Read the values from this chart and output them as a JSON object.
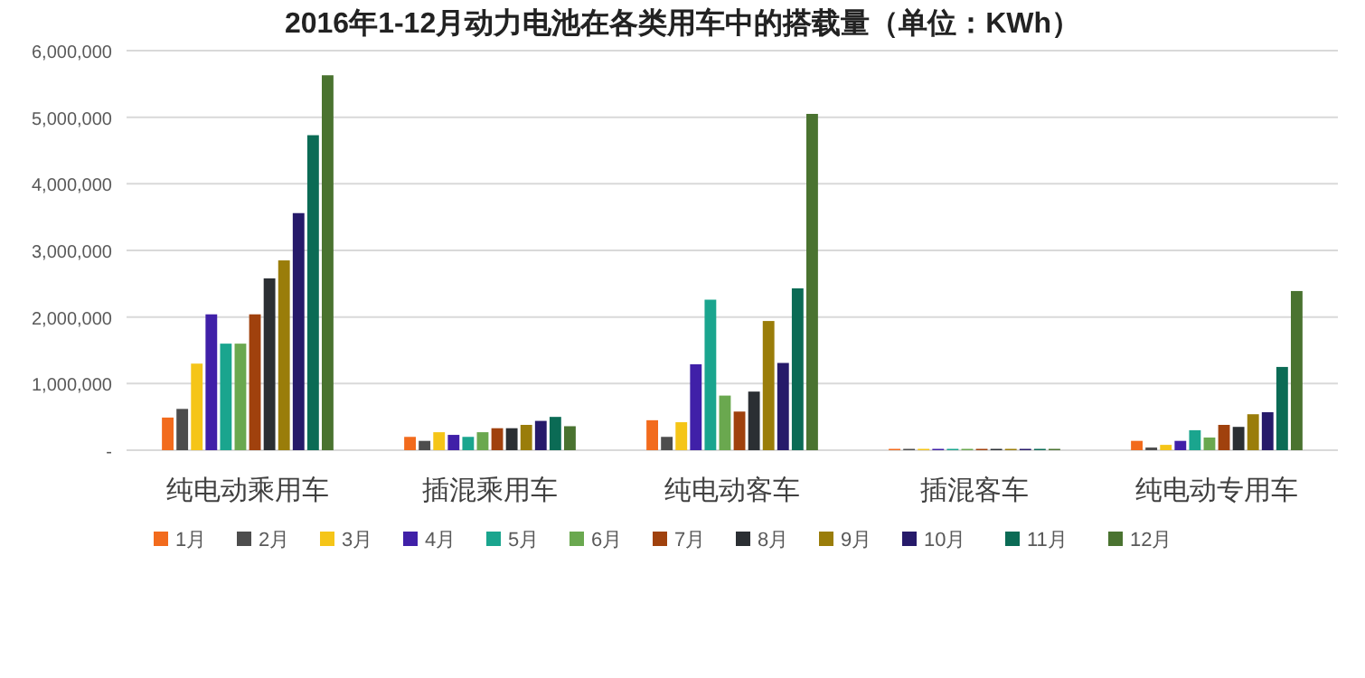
{
  "chart_data": {
    "type": "bar",
    "title": "2016年1-12月动力电池在各类用车中的搭载量（单位：KWh）",
    "categories": [
      "纯电动乘用车",
      "插混乘用车",
      "纯电动客车",
      "插混客车",
      "纯电动专用车"
    ],
    "series": [
      {
        "name": "1月",
        "color": "#f26b1d",
        "values": [
          490000,
          200000,
          450000,
          20000,
          140000
        ]
      },
      {
        "name": "2月",
        "color": "#4d4d4d",
        "values": [
          620000,
          140000,
          200000,
          20000,
          40000
        ]
      },
      {
        "name": "3月",
        "color": "#f5c518",
        "values": [
          1300000,
          270000,
          420000,
          20000,
          80000
        ]
      },
      {
        "name": "4月",
        "color": "#4020a8",
        "values": [
          2040000,
          230000,
          1290000,
          20000,
          140000
        ]
      },
      {
        "name": "5月",
        "color": "#1aa58e",
        "values": [
          1600000,
          200000,
          2260000,
          20000,
          300000
        ]
      },
      {
        "name": "6月",
        "color": "#6aa84f",
        "values": [
          1600000,
          270000,
          820000,
          20000,
          190000
        ]
      },
      {
        "name": "7月",
        "color": "#a0410d",
        "values": [
          2040000,
          330000,
          580000,
          20000,
          380000
        ]
      },
      {
        "name": "8月",
        "color": "#2b2f33",
        "values": [
          2580000,
          330000,
          880000,
          20000,
          350000
        ]
      },
      {
        "name": "9月",
        "color": "#9a7d0a",
        "values": [
          2850000,
          380000,
          1940000,
          20000,
          540000
        ]
      },
      {
        "name": "10月",
        "color": "#261a6a",
        "values": [
          3560000,
          440000,
          1310000,
          20000,
          570000
        ]
      },
      {
        "name": "11月",
        "color": "#0b6b55",
        "values": [
          4730000,
          500000,
          2430000,
          20000,
          1250000
        ]
      },
      {
        "name": "12月",
        "color": "#4a7330",
        "values": [
          5630000,
          360000,
          5050000,
          20000,
          2390000
        ]
      }
    ],
    "ylim": [
      0,
      6000000
    ],
    "yticks": [
      {
        "value": 0,
        "label": "-"
      },
      {
        "value": 1000000,
        "label": "1,000,000"
      },
      {
        "value": 2000000,
        "label": "2,000,000"
      },
      {
        "value": 3000000,
        "label": "3,000,000"
      },
      {
        "value": 4000000,
        "label": "4,000,000"
      },
      {
        "value": 5000000,
        "label": "5,000,000"
      },
      {
        "value": 6000000,
        "label": "6,000,000"
      }
    ],
    "grid": "y",
    "legend": "bottom"
  }
}
